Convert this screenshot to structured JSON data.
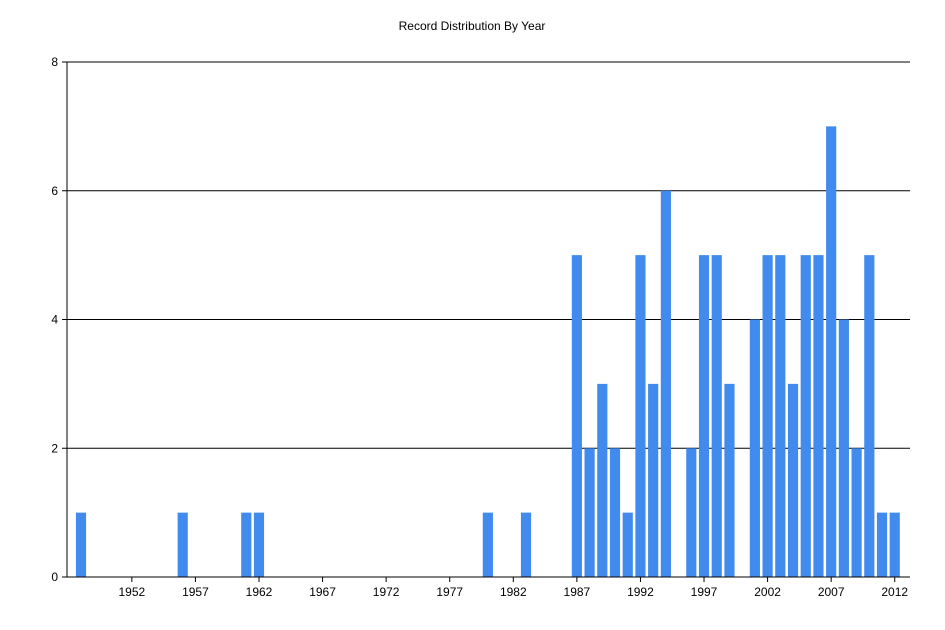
{
  "chart_data": {
    "type": "bar",
    "title": "Record Distribution By Year",
    "xlabel": "",
    "ylabel": "",
    "ylim": [
      0,
      8
    ],
    "xlim": [
      1946.9,
      2013.2
    ],
    "y_ticks": [
      0,
      2,
      4,
      6,
      8
    ],
    "x_ticks": [
      1952,
      1957,
      1962,
      1967,
      1972,
      1977,
      1982,
      1987,
      1992,
      1997,
      2002,
      2007,
      2012
    ],
    "grid": "horizontal",
    "bar_color": "#428bee",
    "x": [
      1948,
      1956,
      1961,
      1962,
      1980,
      1983,
      1987,
      1988,
      1989,
      1990,
      1991,
      1992,
      1993,
      1994,
      1996,
      1997,
      1998,
      1999,
      2001,
      2002,
      2003,
      2004,
      2005,
      2006,
      2007,
      2008,
      2009,
      2010,
      2011,
      2012
    ],
    "values": [
      1,
      1,
      1,
      1,
      1,
      1,
      5,
      2,
      3,
      2,
      1,
      5,
      3,
      6,
      2,
      5,
      5,
      3,
      4,
      5,
      5,
      3,
      5,
      5,
      7,
      4,
      2,
      5,
      1,
      1
    ]
  }
}
